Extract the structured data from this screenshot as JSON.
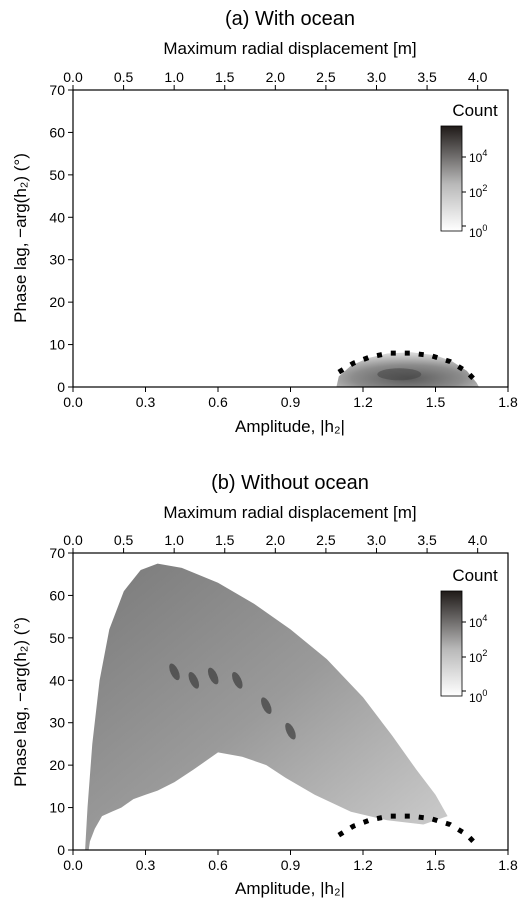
{
  "chart_data": [
    {
      "type": "heatmap",
      "title": "(a) With ocean",
      "xlabel": "Amplitude, |h₂|",
      "ylabel": "Phase lag, −arg(h₂) (°)",
      "x2label": "Maximum radial displacement [m]",
      "xlim": [
        0.0,
        1.8
      ],
      "ylim": [
        0,
        70
      ],
      "x2lim": [
        0.0,
        4.3
      ],
      "xticks": [
        "0.0",
        "0.3",
        "0.6",
        "0.9",
        "1.2",
        "1.5",
        "1.8"
      ],
      "yticks": [
        "0",
        "10",
        "20",
        "30",
        "40",
        "50",
        "60",
        "70"
      ],
      "x2ticks": [
        "0.0",
        "0.5",
        "1.0",
        "1.5",
        "2.0",
        "2.5",
        "3.0",
        "3.5",
        "4.0"
      ],
      "colorbar": {
        "title": "Count",
        "scale": "log",
        "ticks": [
          "10^0",
          "10^2",
          "10^4"
        ]
      },
      "reference_arc": {
        "style": "dotted",
        "points": [
          [
            1.1,
            3.5
          ],
          [
            1.16,
            5.6
          ],
          [
            1.23,
            7.1
          ],
          [
            1.31,
            8.0
          ],
          [
            1.4,
            8.0
          ],
          [
            1.48,
            7.4
          ],
          [
            1.56,
            6.0
          ],
          [
            1.63,
            3.6
          ],
          [
            1.68,
            0.6
          ]
        ]
      },
      "density_region": {
        "outline": [
          [
            1.09,
            0
          ],
          [
            1.1,
            2.5
          ],
          [
            1.15,
            5.0
          ],
          [
            1.22,
            6.8
          ],
          [
            1.3,
            7.9
          ],
          [
            1.4,
            8.2
          ],
          [
            1.5,
            7.5
          ],
          [
            1.57,
            6.0
          ],
          [
            1.63,
            3.8
          ],
          [
            1.67,
            1.0
          ],
          [
            1.68,
            0
          ]
        ],
        "peak": [
          1.35,
          3.0
        ]
      }
    },
    {
      "type": "heatmap",
      "title": "(b) Without ocean",
      "xlabel": "Amplitude, |h₂|",
      "ylabel": "Phase lag, −arg(h₂) (°)",
      "x2label": "Maximum radial displacement [m]",
      "xlim": [
        0.0,
        1.8
      ],
      "ylim": [
        0,
        70
      ],
      "x2lim": [
        0.0,
        4.3
      ],
      "xticks": [
        "0.0",
        "0.3",
        "0.6",
        "0.9",
        "1.2",
        "1.5",
        "1.8"
      ],
      "yticks": [
        "0",
        "10",
        "20",
        "30",
        "40",
        "50",
        "60",
        "70"
      ],
      "x2ticks": [
        "0.0",
        "0.5",
        "1.0",
        "1.5",
        "2.0",
        "2.5",
        "3.0",
        "3.5",
        "4.0"
      ],
      "colorbar": {
        "title": "Count",
        "scale": "log",
        "ticks": [
          "10^0",
          "10^2",
          "10^4"
        ]
      },
      "reference_arc": {
        "style": "dotted",
        "points": [
          [
            1.1,
            3.5
          ],
          [
            1.16,
            5.6
          ],
          [
            1.23,
            7.1
          ],
          [
            1.31,
            8.0
          ],
          [
            1.4,
            8.0
          ],
          [
            1.48,
            7.4
          ],
          [
            1.56,
            6.0
          ],
          [
            1.63,
            3.6
          ],
          [
            1.68,
            0.6
          ]
        ]
      },
      "density_region": {
        "outer": [
          [
            0.05,
            0
          ],
          [
            0.06,
            10
          ],
          [
            0.08,
            25
          ],
          [
            0.11,
            40
          ],
          [
            0.15,
            52
          ],
          [
            0.21,
            61
          ],
          [
            0.28,
            66
          ],
          [
            0.35,
            67.5
          ],
          [
            0.45,
            66.5
          ],
          [
            0.6,
            63
          ],
          [
            0.75,
            58
          ],
          [
            0.9,
            52
          ],
          [
            1.05,
            45
          ],
          [
            1.2,
            36
          ],
          [
            1.32,
            27
          ],
          [
            1.42,
            19
          ],
          [
            1.5,
            13
          ],
          [
            1.55,
            8
          ]
        ],
        "inner": [
          [
            1.55,
            8
          ],
          [
            1.45,
            6
          ],
          [
            1.3,
            7
          ],
          [
            1.15,
            9
          ],
          [
            1.0,
            13
          ],
          [
            0.88,
            17
          ],
          [
            0.8,
            20
          ],
          [
            0.7,
            22
          ],
          [
            0.6,
            23
          ],
          [
            0.5,
            19
          ],
          [
            0.42,
            16
          ],
          [
            0.35,
            14
          ],
          [
            0.3,
            13
          ],
          [
            0.25,
            12
          ],
          [
            0.2,
            10
          ],
          [
            0.16,
            9
          ],
          [
            0.12,
            8
          ],
          [
            0.09,
            5
          ],
          [
            0.07,
            2
          ],
          [
            0.065,
            0
          ]
        ],
        "dark_streaks": [
          [
            0.42,
            42
          ],
          [
            0.5,
            40
          ],
          [
            0.58,
            41
          ],
          [
            0.68,
            40
          ],
          [
            0.8,
            34
          ],
          [
            0.9,
            28
          ]
        ]
      }
    }
  ]
}
